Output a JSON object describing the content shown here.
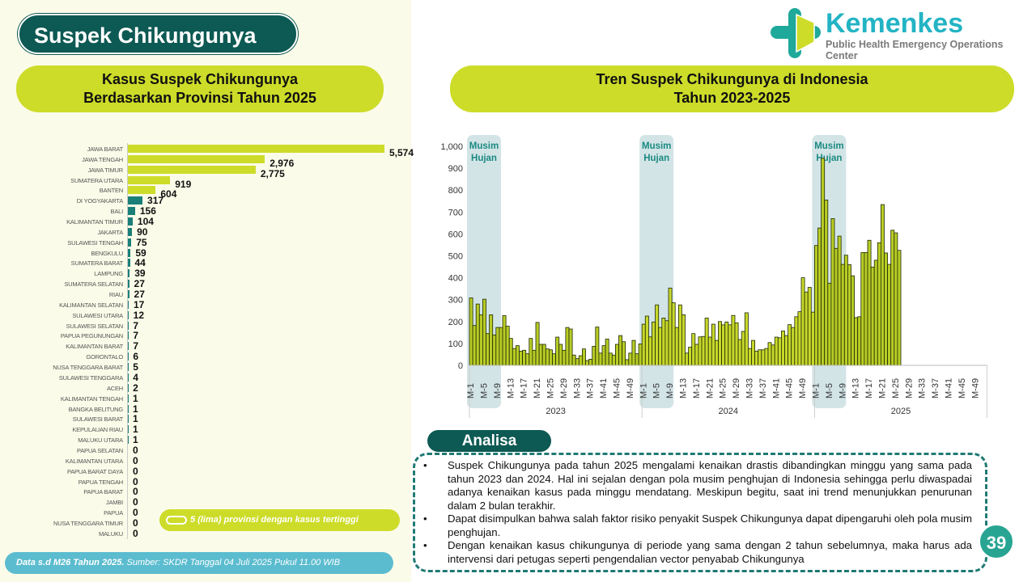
{
  "header": {
    "title": "Suspek Chikungunya",
    "logo_name": "Kemenkes",
    "logo_subtitle": "Public Health Emergency Operations Center"
  },
  "left_panel": {
    "title_line1": "Kasus Suspek Chikungunya",
    "title_line2": "Berdasarkan Provinsi Tahun 2025",
    "legend": "5 (lima) provinsi dengan kasus tertinggi",
    "highlight_color": "#cddc29",
    "other_color": "#1a7f78"
  },
  "right_panel": {
    "title_line1": "Tren Suspek Chikungunya di Indonesia",
    "title_line2": "Tahun 2023-2025"
  },
  "chart_data": [
    {
      "type": "bar",
      "orientation": "horizontal",
      "title": "Kasus Suspek Chikungunya Berdasarkan Provinsi Tahun 2025",
      "categories": [
        "JAWA BARAT",
        "JAWA TENGAH",
        "JAWA TIMUR",
        "SUMATERA UTARA",
        "BANTEN",
        "DI YOGYAKARTA",
        "BALI",
        "KALIMANTAN TIMUR",
        "JAKARTA",
        "SULAWESI TENGAH",
        "BENGKULU",
        "SUMATERA BARAT",
        "LAMPUNG",
        "SUMATERA SELATAN",
        "RIAU",
        "KALIMANTAN SELATAN",
        "SULAWESI UTARA",
        "SULAWESI SELATAN",
        "PAPUA PEGUNUNGAN",
        "KALIMANTAN BARAT",
        "GORONTALO",
        "NUSA TENGGARA BARAT",
        "SULAWESI TENGGARA",
        "ACEH",
        "KALIMANTAN TENGAH",
        "BANGKA BELITUNG",
        "SULAWESI BARAT",
        "KEPULAUAN RIAU",
        "MALUKU UTARA",
        "PAPUA SELATAN",
        "KALIMANTAN UTARA",
        "PAPUA BARAT DAYA",
        "PAPUA TENGAH",
        "PAPUA BARAT",
        "JAMBI",
        "PAPUA",
        "NUSA TENGGARA TIMUR",
        "MALUKU"
      ],
      "values": [
        5574,
        2976,
        2775,
        919,
        604,
        317,
        156,
        104,
        90,
        75,
        59,
        44,
        39,
        27,
        27,
        17,
        12,
        7,
        7,
        7,
        6,
        5,
        4,
        2,
        1,
        1,
        1,
        1,
        1,
        0,
        0,
        0,
        0,
        0,
        0,
        0,
        0,
        0
      ],
      "value_labels": [
        "5,574",
        "2,976",
        "2,775",
        "919",
        "604",
        "317",
        "156",
        "104",
        "90",
        "75",
        "59",
        "44",
        "39",
        "27",
        "27",
        "17",
        "12",
        "7",
        "7",
        "7",
        "6",
        "5",
        "4",
        "2",
        "1",
        "1",
        "1",
        "1",
        "1",
        "0",
        "0",
        "0",
        "0",
        "0",
        "0",
        "0",
        "0",
        "0"
      ],
      "highlight_top": 5
    },
    {
      "type": "bar",
      "title": "Tren Suspek Chikungunya di Indonesia Tahun 2023-2025",
      "ylim": [
        0,
        1000
      ],
      "yticks": [
        "0",
        "100",
        "200",
        "300",
        "400",
        "500",
        "600",
        "700",
        "800",
        "900",
        "1,000"
      ],
      "xticks": [
        "M-1",
        "M-5",
        "M-9",
        "M-13",
        "M-17",
        "M-21",
        "M-25",
        "M-29",
        "M-33",
        "M-37",
        "M-41",
        "M-45",
        "M-49"
      ],
      "years": [
        "2023",
        "2024",
        "2025"
      ],
      "annotation": [
        "Musim",
        "Hujan"
      ],
      "series": [
        {
          "name": "2023",
          "values": [
            308,
            182,
            280,
            231,
            302,
            145,
            231,
            139,
            173,
            173,
            227,
            179,
            123,
            77,
            90,
            65,
            69,
            53,
            123,
            69,
            196,
            96,
            96,
            75,
            71,
            53,
            129,
            96,
            69,
            173,
            166,
            47,
            31,
            44,
            75,
            22,
            28,
            87,
            175,
            56,
            90,
            120,
            56,
            47,
            96,
            136,
            108,
            26,
            56,
            114,
            53,
            98
          ]
        },
        {
          "name": "2024",
          "values": [
            188,
            225,
            130,
            198,
            276,
            173,
            216,
            204,
            353,
            286,
            173,
            276,
            231,
            56,
            83,
            145,
            96,
            130,
            132,
            216,
            129,
            188,
            114,
            200,
            185,
            198,
            185,
            228,
            194,
            118,
            155,
            240,
            77,
            114,
            65,
            71,
            71,
            77,
            104,
            93,
            129,
            126,
            157,
            136,
            186,
            173,
            222,
            245,
            400,
            335,
            356,
            243
          ]
        },
        {
          "name": "2025",
          "values": [
            547,
            627,
            945,
            755,
            375,
            670,
            534,
            590,
            461,
            503,
            460,
            409,
            218,
            222,
            515,
            515,
            571,
            449,
            480,
            560,
            734,
            513,
            461,
            617,
            605,
            525
          ]
        }
      ]
    }
  ],
  "analisa": {
    "title": "Analisa",
    "points": [
      "Suspek Chikungunya pada tahun 2025 mengalami kenaikan drastis dibandingkan minggu yang sama pada tahun 2023 dan 2024. Hal ini sejalan dengan pola musim penghujan di Indonesia sehingga perlu diwaspadai adanya kenaikan kasus pada minggu mendatang. Meskipun begitu, saat ini trend menunjukkan penurunan dalam 2 bulan terakhir.",
      "Dapat disimpulkan bahwa salah faktor risiko penyakit Suspek Chikungunya dapat dipengaruhi oleh pola musim penghujan.",
      "Dengan kenaikan kasus chikungunya di periode yang sama dengan 2 tahun sebelumnya, maka harus ada intervensi dari petugas seperti pengendalian vector penyabab Chikungunya"
    ]
  },
  "footer": {
    "bold": "Data s.d M26 Tahun 2025.",
    "source": " Sumber: SKDR Tanggal 04 Juli 2025 Pukul 11.00 WIB"
  },
  "page_number": "39"
}
